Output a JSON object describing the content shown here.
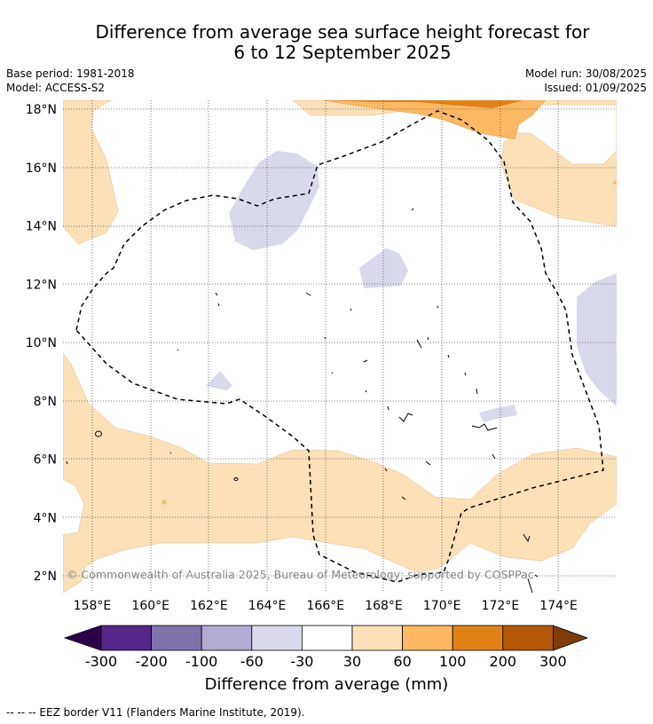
{
  "title": {
    "line1": "Difference from average sea surface height forecast for",
    "line2": "6 to 12 September 2025"
  },
  "meta": {
    "base_period": "Base period: 1981-2018",
    "model": "Model: ACCESS-S2",
    "model_run": "Model run: 30/08/2025",
    "issued": "Issued: 01/09/2025"
  },
  "map": {
    "lat_labels": [
      "18°N",
      "16°N",
      "14°N",
      "12°N",
      "10°N",
      "8°N",
      "6°N",
      "4°N",
      "2°N"
    ],
    "lon_labels": [
      "158°E",
      "160°E",
      "162°E",
      "164°E",
      "166°E",
      "168°E",
      "170°E",
      "172°E",
      "174°E"
    ],
    "copyright": "© Commonwealth of Australia 2025, Bureau of Meteorology; supported by COSPPac"
  },
  "colorbar": {
    "ticks": [
      "-300",
      "-200",
      "-100",
      "-60",
      "-30",
      "30",
      "60",
      "100",
      "200",
      "300"
    ],
    "label": "Difference from average (mm)",
    "colors": {
      "below": "#2d004b",
      "bins": [
        "#542788",
        "#8073ac",
        "#b2abd2",
        "#d8daeb",
        "#ffffff",
        "#fee0b6",
        "#fdb863",
        "#e08214",
        "#b35806"
      ],
      "above": "#7f3b08"
    }
  },
  "footnote": "--  --  -- EEZ border V11 (Flanders Marine Institute, 2019)."
}
